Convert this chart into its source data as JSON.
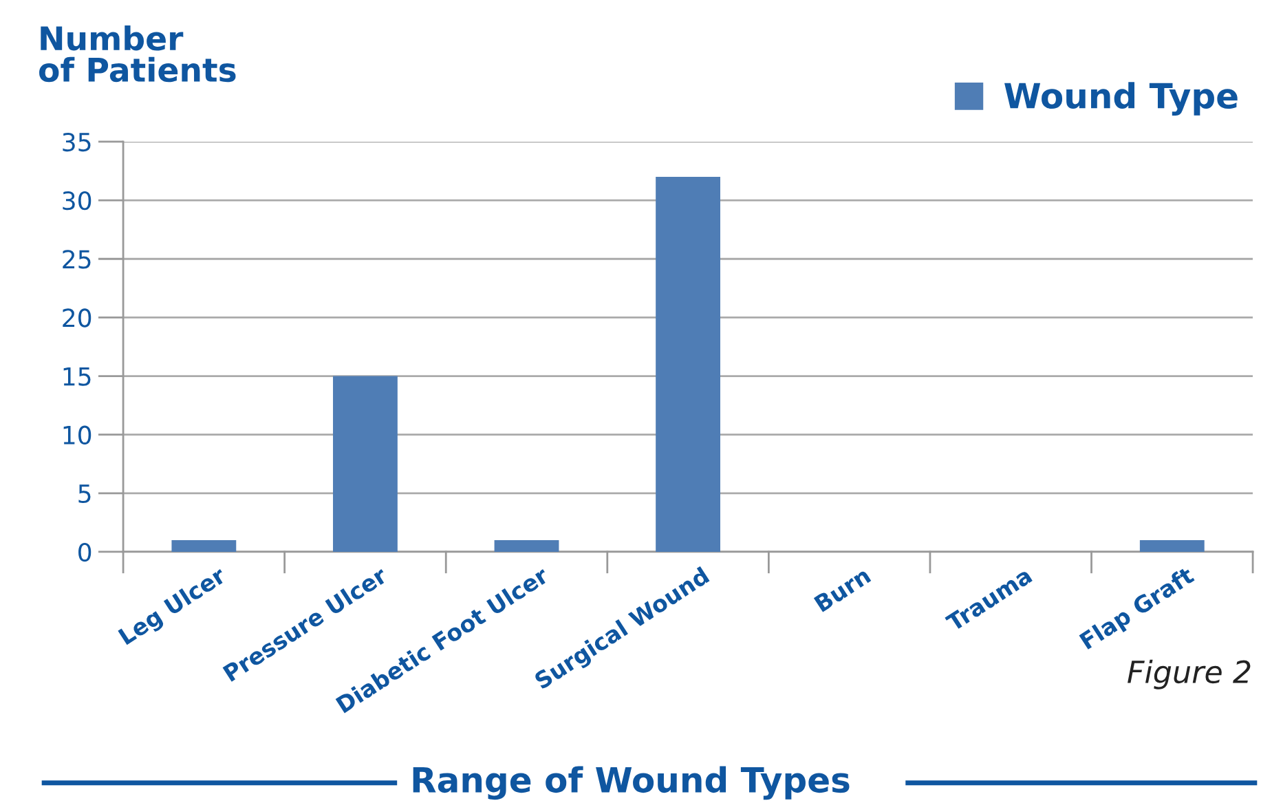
{
  "chart_data": {
    "type": "bar",
    "title": "Range of Wound Types",
    "ylabel": "Number\nof Patients",
    "categories": [
      "Leg Ulcer",
      "Pressure Ulcer",
      "Diabetic Foot Ulcer",
      "Surgical Wound",
      "Burn",
      "Trauma",
      "Flap Graft"
    ],
    "series": [
      {
        "name": "Wound Type",
        "color": "#4f7db5",
        "values": [
          1,
          15,
          1,
          32,
          0,
          0,
          1
        ]
      }
    ],
    "ylim": [
      0,
      35
    ],
    "yticks": [
      0,
      5,
      10,
      15,
      20,
      25,
      30,
      35
    ],
    "grid": "y",
    "legend": "top right",
    "annotations": [
      "Figure 2"
    ]
  }
}
